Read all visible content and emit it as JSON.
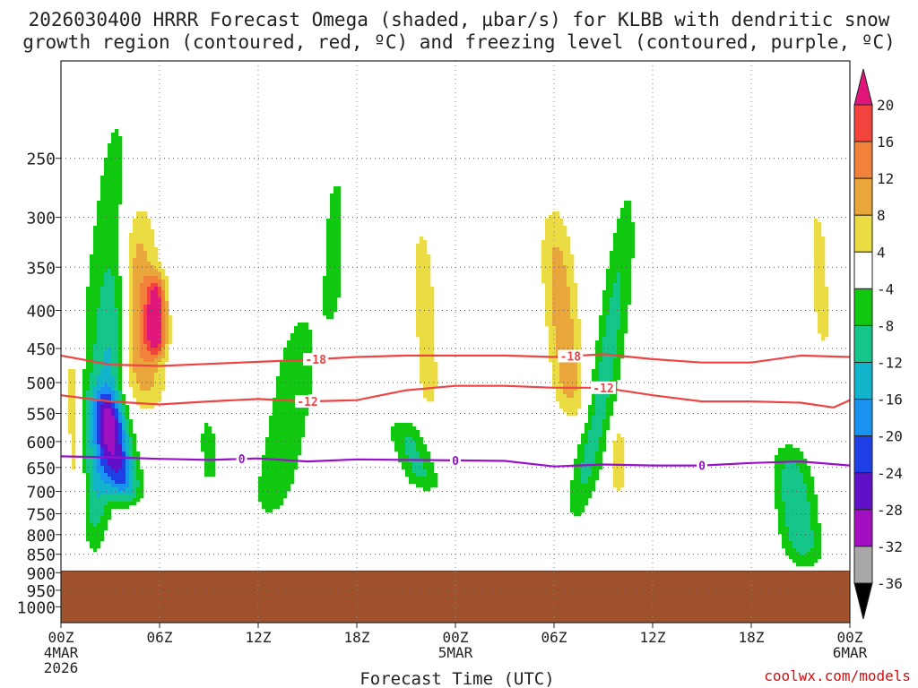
{
  "chart_data": {
    "type": "heatmap",
    "title_line1": "2026030400 HRRR Forecast Omega (shaded, µbar/s) for KLBB with dendritic snow",
    "title_line2": "growth region (contoured, red, ºC) and freezing level (contoured, purple, ºC)",
    "xlabel": "Forecast Time (UTC)",
    "credit": "coolwx.com/models",
    "x_hours": [
      0,
      6,
      12,
      18,
      24,
      30,
      36,
      42,
      48
    ],
    "x_ticks": [
      {
        "hour": 0,
        "l1": "00Z",
        "l2": "4MAR",
        "l3": "2026"
      },
      {
        "hour": 6,
        "l1": "06Z"
      },
      {
        "hour": 12,
        "l1": "12Z"
      },
      {
        "hour": 18,
        "l1": "18Z"
      },
      {
        "hour": 24,
        "l1": "00Z",
        "l2": "5MAR"
      },
      {
        "hour": 30,
        "l1": "06Z"
      },
      {
        "hour": 36,
        "l1": "12Z"
      },
      {
        "hour": 42,
        "l1": "18Z"
      },
      {
        "hour": 48,
        "l1": "00Z",
        "l2": "6MAR"
      }
    ],
    "y_levels_hpa": [
      250,
      300,
      350,
      400,
      450,
      500,
      550,
      600,
      650,
      700,
      750,
      800,
      850,
      900,
      950,
      1000
    ],
    "y_tick_labels": [
      "250",
      "300",
      "350",
      "400",
      "450",
      "500",
      "550",
      "600",
      "650",
      "700",
      "750",
      "800",
      "850",
      "900",
      "950",
      "1000"
    ],
    "surface_pressure_hpa": 895,
    "colorbar": {
      "labels": [
        "20",
        "16",
        "12",
        "8",
        "4",
        "-4",
        "-8",
        "-12",
        "-16",
        "-20",
        "-24",
        "-28",
        "-32",
        "-36"
      ],
      "bins": [
        {
          "lo": 20,
          "hi": 99,
          "color": "#e0157a"
        },
        {
          "lo": 16,
          "hi": 20,
          "color": "#f2433c"
        },
        {
          "lo": 12,
          "hi": 16,
          "color": "#f2823a"
        },
        {
          "lo": 8,
          "hi": 12,
          "color": "#e9a63a"
        },
        {
          "lo": 4,
          "hi": 8,
          "color": "#ecdc44"
        },
        {
          "lo": -4,
          "hi": 4,
          "color": "#ffffff"
        },
        {
          "lo": -8,
          "hi": -4,
          "color": "#10c810"
        },
        {
          "lo": -12,
          "hi": -8,
          "color": "#14c68a"
        },
        {
          "lo": -16,
          "hi": -12,
          "color": "#12b4cc"
        },
        {
          "lo": -20,
          "hi": -16,
          "color": "#1a92f0"
        },
        {
          "lo": -24,
          "hi": -20,
          "color": "#1e3ee6"
        },
        {
          "lo": -28,
          "hi": -24,
          "color": "#6010c6"
        },
        {
          "lo": -32,
          "hi": -28,
          "color": "#a010c0"
        },
        {
          "lo": -36,
          "hi": -32,
          "color": "#a8a8a8"
        },
        {
          "lo": -99,
          "hi": -36,
          "color": "#000000"
        }
      ]
    },
    "omega_features": [
      {
        "name": "early-deep-upward-band",
        "hour": 1.8,
        "p_top": 190,
        "p_bot": 860,
        "value": -6,
        "width_h": 1.3,
        "slant_h": -1.4
      },
      {
        "name": "early-upward-core",
        "hour": 2.8,
        "p_top": 280,
        "p_bot": 840,
        "value": -10,
        "width_h": 0.9,
        "slant_h": -0.9
      },
      {
        "name": "low-level-upward-max",
        "hour": 3.4,
        "p_top": 520,
        "p_bot": 720,
        "value": -22,
        "width_h": 1.0,
        "slant_h": 0.6
      },
      {
        "name": "early-subsidence-lower",
        "hour": 0.9,
        "p_top": 440,
        "p_bot": 850,
        "value": 10,
        "width_h": 0.55,
        "slant_h": 0.2
      },
      {
        "name": "early-subsidence-upper",
        "hour": 4.8,
        "p_top": 285,
        "p_bot": 540,
        "value": 12,
        "width_h": 1.3,
        "slant_h": 0.4
      },
      {
        "name": "subsidence-max",
        "hour": 5.8,
        "p_top": 360,
        "p_bot": 460,
        "value": 19,
        "width_h": 0.6,
        "slant_h": 0
      },
      {
        "name": "small-upward-0830",
        "hour": 9.0,
        "p_top": 560,
        "p_bot": 680,
        "value": -7,
        "width_h": 0.5,
        "slant_h": 0.1
      },
      {
        "name": "afternoon-upward",
        "hour": 13.7,
        "p_top": 400,
        "p_bot": 760,
        "value": -8,
        "width_h": 1.3,
        "slant_h": -1.1
      },
      {
        "name": "upper-upward-17z",
        "hour": 16.6,
        "p_top": 255,
        "p_bot": 420,
        "value": -6,
        "width_h": 0.7,
        "slant_h": -0.2
      },
      {
        "name": "subsidence-23z",
        "hour": 22.2,
        "p_top": 290,
        "p_bot": 560,
        "value": 6,
        "width_h": 0.8,
        "slant_h": 0.3
      },
      {
        "name": "upward-21z",
        "hour": 21.5,
        "p_top": 560,
        "p_bot": 700,
        "value": -9,
        "width_h": 1.1,
        "slant_h": 0.8
      },
      {
        "name": "subsidence-0530",
        "hour": 30.6,
        "p_top": 295,
        "p_bot": 560,
        "value": 11,
        "width_h": 1.0,
        "slant_h": 0.6
      },
      {
        "name": "upward-08z",
        "hour": 32.9,
        "p_top": 280,
        "p_bot": 760,
        "value": -10,
        "width_h": 0.9,
        "slant_h": -1.6
      },
      {
        "name": "subsidence-08z-low",
        "hour": 33.9,
        "p_top": 570,
        "p_bot": 710,
        "value": 7,
        "width_h": 0.45,
        "slant_h": 0
      },
      {
        "name": "upward-21z-day2",
        "hour": 44.8,
        "p_top": 610,
        "p_bot": 880,
        "value": -12,
        "width_h": 1.2,
        "slant_h": 0.5
      },
      {
        "name": "subsidence-22z-day2",
        "hour": 46.2,
        "p_top": 270,
        "p_bot": 470,
        "value": 5,
        "width_h": 0.8,
        "slant_h": 0.3
      }
    ],
    "contours": [
      {
        "name": "-18",
        "label": "-18",
        "color": "#ee4444",
        "label_hours": [
          15.5,
          31.0
        ],
        "hours": [
          0,
          3,
          6,
          9,
          12,
          15,
          18,
          21,
          24,
          27,
          30,
          33,
          36,
          39,
          42,
          45,
          48
        ],
        "pressure": [
          460,
          473,
          475,
          472,
          469,
          466,
          462,
          460,
          460,
          460,
          462,
          458,
          465,
          470,
          470,
          460,
          462
        ]
      },
      {
        "name": "-12",
        "label": "-12",
        "color": "#ee4444",
        "label_hours": [
          15.0,
          33.0
        ],
        "hours": [
          0,
          3,
          6,
          9,
          12,
          15,
          18,
          21,
          24,
          27,
          30,
          33,
          36,
          39,
          42,
          45,
          47,
          48
        ],
        "pressure": [
          520,
          530,
          535,
          530,
          526,
          530,
          528,
          512,
          505,
          505,
          508,
          508,
          520,
          530,
          530,
          532,
          540,
          528
        ]
      },
      {
        "name": "0",
        "label": "0",
        "color": "#9910cc",
        "label_hours": [
          11.0,
          24.0,
          39.0
        ],
        "hours": [
          0,
          3,
          6,
          9,
          12,
          15,
          18,
          21,
          24,
          27,
          30,
          33,
          36,
          39,
          42,
          45,
          48
        ],
        "pressure": [
          628,
          630,
          633,
          635,
          632,
          638,
          634,
          635,
          636,
          637,
          648,
          644,
          646,
          646,
          641,
          638,
          646
        ]
      }
    ]
  }
}
